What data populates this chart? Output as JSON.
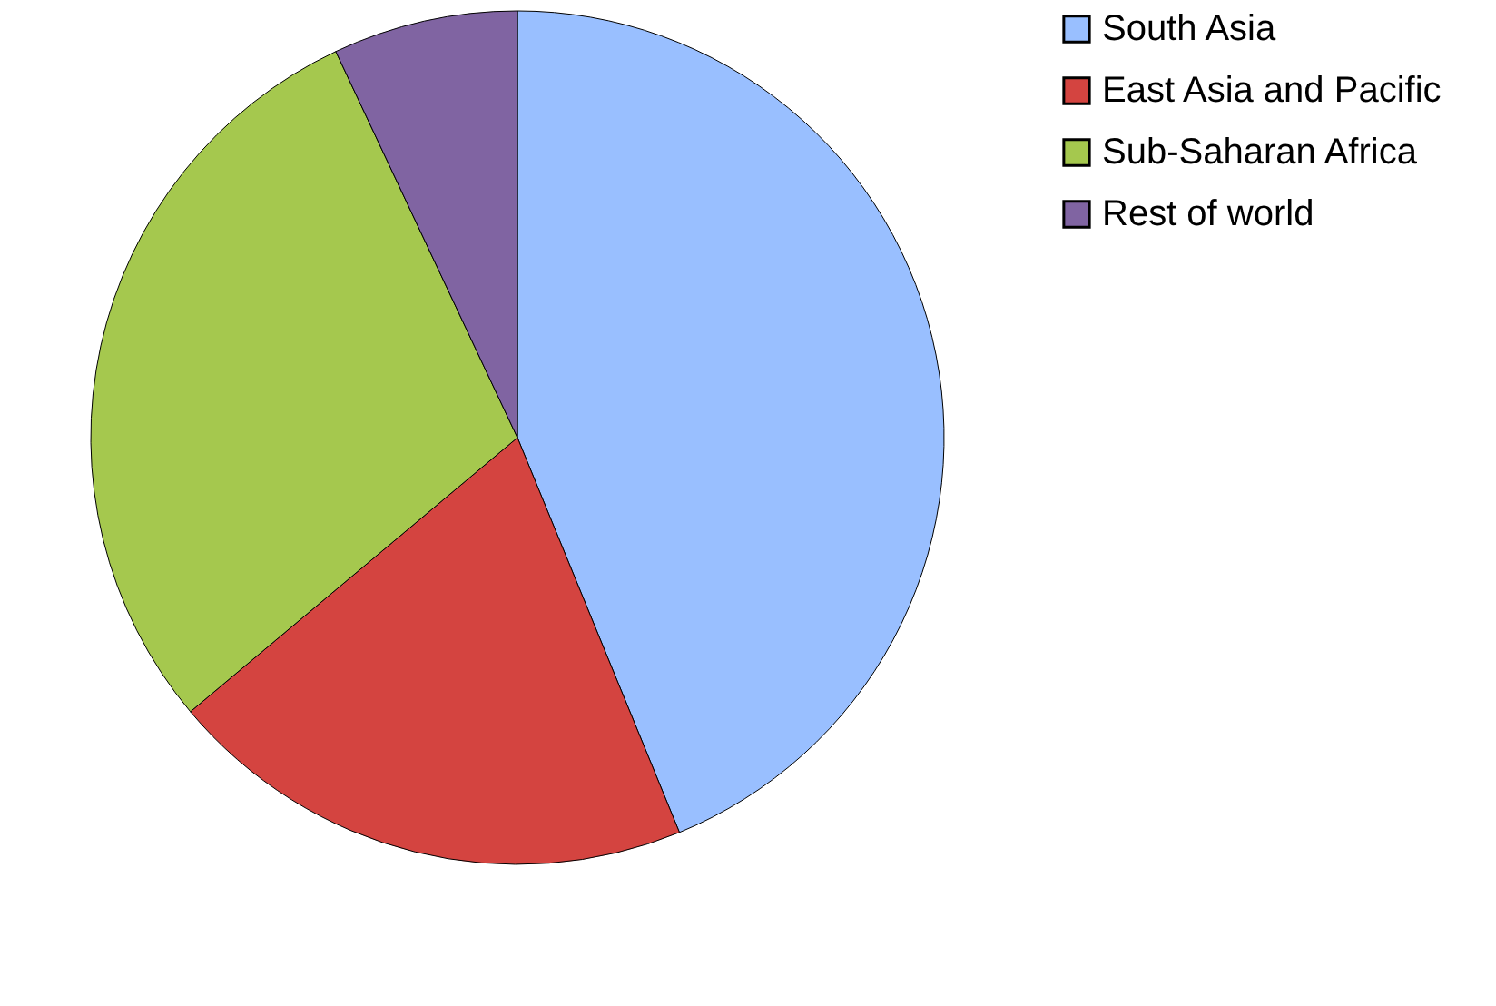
{
  "chart_data": {
    "type": "pie",
    "categories": [
      "South Asia",
      "East Asia and Pacific",
      "Sub-Saharan Africa",
      "Rest of world"
    ],
    "values": [
      43.8,
      20.1,
      29.1,
      7.0
    ],
    "colors": [
      "#99bfff",
      "#d44440",
      "#a5c84e",
      "#8064a2"
    ],
    "legend": "right"
  }
}
